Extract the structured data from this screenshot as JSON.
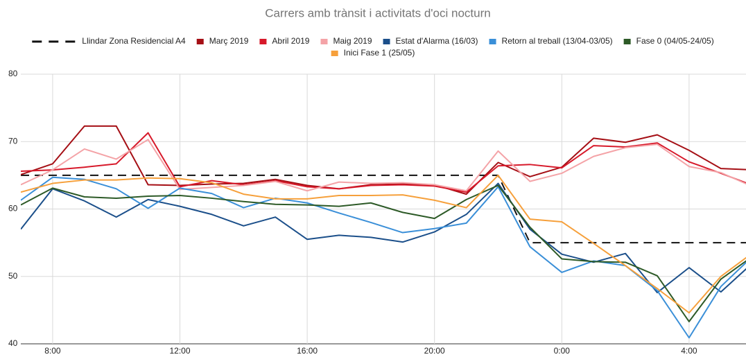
{
  "chart_data": {
    "type": "line",
    "title": "Carrers amb trànsit i activitats d'oci nocturn",
    "categories": [
      null,
      "8:00",
      null,
      null,
      null,
      "12:00",
      null,
      null,
      null,
      "16:00",
      null,
      null,
      null,
      "20:00",
      null,
      null,
      null,
      "0:00",
      null,
      null,
      null,
      "4:00",
      null,
      null
    ],
    "series": [
      {
        "name": "Llindar Zona Residencial A4",
        "color": "#111111",
        "dashed": true,
        "values": [
          65,
          65,
          65,
          65,
          65,
          65,
          65,
          65,
          65,
          65,
          65,
          65,
          65,
          65,
          65,
          65,
          55,
          55,
          55,
          55,
          55,
          55,
          55,
          55
        ]
      },
      {
        "name": "Març 2019",
        "color": "#a50f15",
        "values": [
          65.1,
          66.7,
          72.3,
          72.3,
          63.6,
          63.5,
          63.7,
          63.8,
          64.4,
          63.5,
          63.0,
          63.6,
          63.7,
          63.6,
          62.2,
          66.9,
          64.8,
          66.2,
          70.5,
          69.9,
          71.0,
          68.7,
          66.0,
          65.8
        ]
      },
      {
        "name": "Abril 2019",
        "color": "#d7192a",
        "values": [
          65.6,
          65.8,
          66.2,
          66.7,
          71.3,
          63.3,
          64.2,
          63.6,
          64.2,
          63.3,
          63.0,
          63.5,
          63.6,
          63.4,
          62.5,
          66.4,
          66.6,
          66.1,
          69.4,
          69.2,
          69.8,
          67.0,
          65.3,
          63.5
        ]
      },
      {
        "name": "Maig 2019",
        "color": "#f4a3a7",
        "values": [
          63.6,
          65.8,
          68.9,
          67.4,
          70.3,
          62.9,
          63.2,
          63.5,
          64.1,
          62.7,
          64.0,
          63.8,
          63.9,
          63.6,
          62.7,
          68.6,
          64.1,
          65.3,
          67.8,
          69.1,
          69.6,
          66.3,
          65.4,
          63.3
        ]
      },
      {
        "name": "Estat d'Alarma (16/03)",
        "color": "#1b4f8a",
        "values": [
          57.0,
          63.0,
          61.2,
          58.8,
          61.4,
          60.4,
          59.2,
          57.5,
          58.8,
          55.5,
          56.1,
          55.8,
          55.1,
          56.6,
          59.2,
          63.8,
          57.0,
          53.3,
          52.1,
          53.4,
          47.6,
          51.3,
          47.7,
          52.0
        ]
      },
      {
        "name": "Retorn al treball (13/04-03/05)",
        "color": "#3a8fd8",
        "values": [
          61.3,
          64.7,
          64.4,
          63.0,
          60.1,
          63.1,
          62.3,
          60.2,
          61.6,
          60.9,
          59.4,
          58.0,
          56.5,
          57.1,
          57.9,
          63.3,
          54.4,
          50.6,
          52.3,
          51.6,
          47.9,
          40.9,
          48.5,
          53.0
        ]
      },
      {
        "name": "Fase 0 (04/05-24/05)",
        "color": "#2d5a27",
        "values": [
          60.6,
          63.1,
          61.8,
          61.6,
          61.9,
          62.0,
          61.6,
          61.1,
          60.7,
          60.6,
          60.4,
          60.9,
          59.5,
          58.6,
          61.4,
          63.5,
          57.3,
          52.6,
          52.2,
          52.1,
          50.1,
          43.3,
          49.6,
          53.0
        ]
      },
      {
        "name": "Inici Fase 1 (25/05)",
        "color": "#f6a03b",
        "values": [
          62.5,
          63.8,
          64.3,
          64.3,
          64.6,
          64.5,
          63.9,
          62.2,
          61.5,
          61.5,
          62.0,
          62.0,
          62.1,
          61.3,
          60.2,
          65.0,
          58.5,
          58.1,
          54.9,
          51.6,
          48.2,
          44.6,
          50.0,
          53.5
        ]
      }
    ],
    "ylim": [
      40,
      80
    ],
    "yticks": [
      40,
      50,
      60,
      70,
      80
    ],
    "grid": true
  }
}
